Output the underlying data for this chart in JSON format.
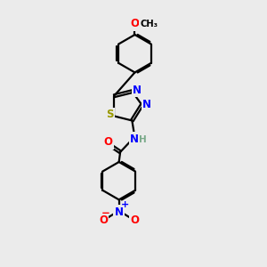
{
  "bg_color": "#ebebeb",
  "bond_color": "#000000",
  "bond_width": 1.6,
  "atom_colors": {
    "N": "#0000ff",
    "O": "#ff0000",
    "S": "#999900",
    "H": "#7aaa8a",
    "C": "#000000"
  },
  "fs": 8.5
}
